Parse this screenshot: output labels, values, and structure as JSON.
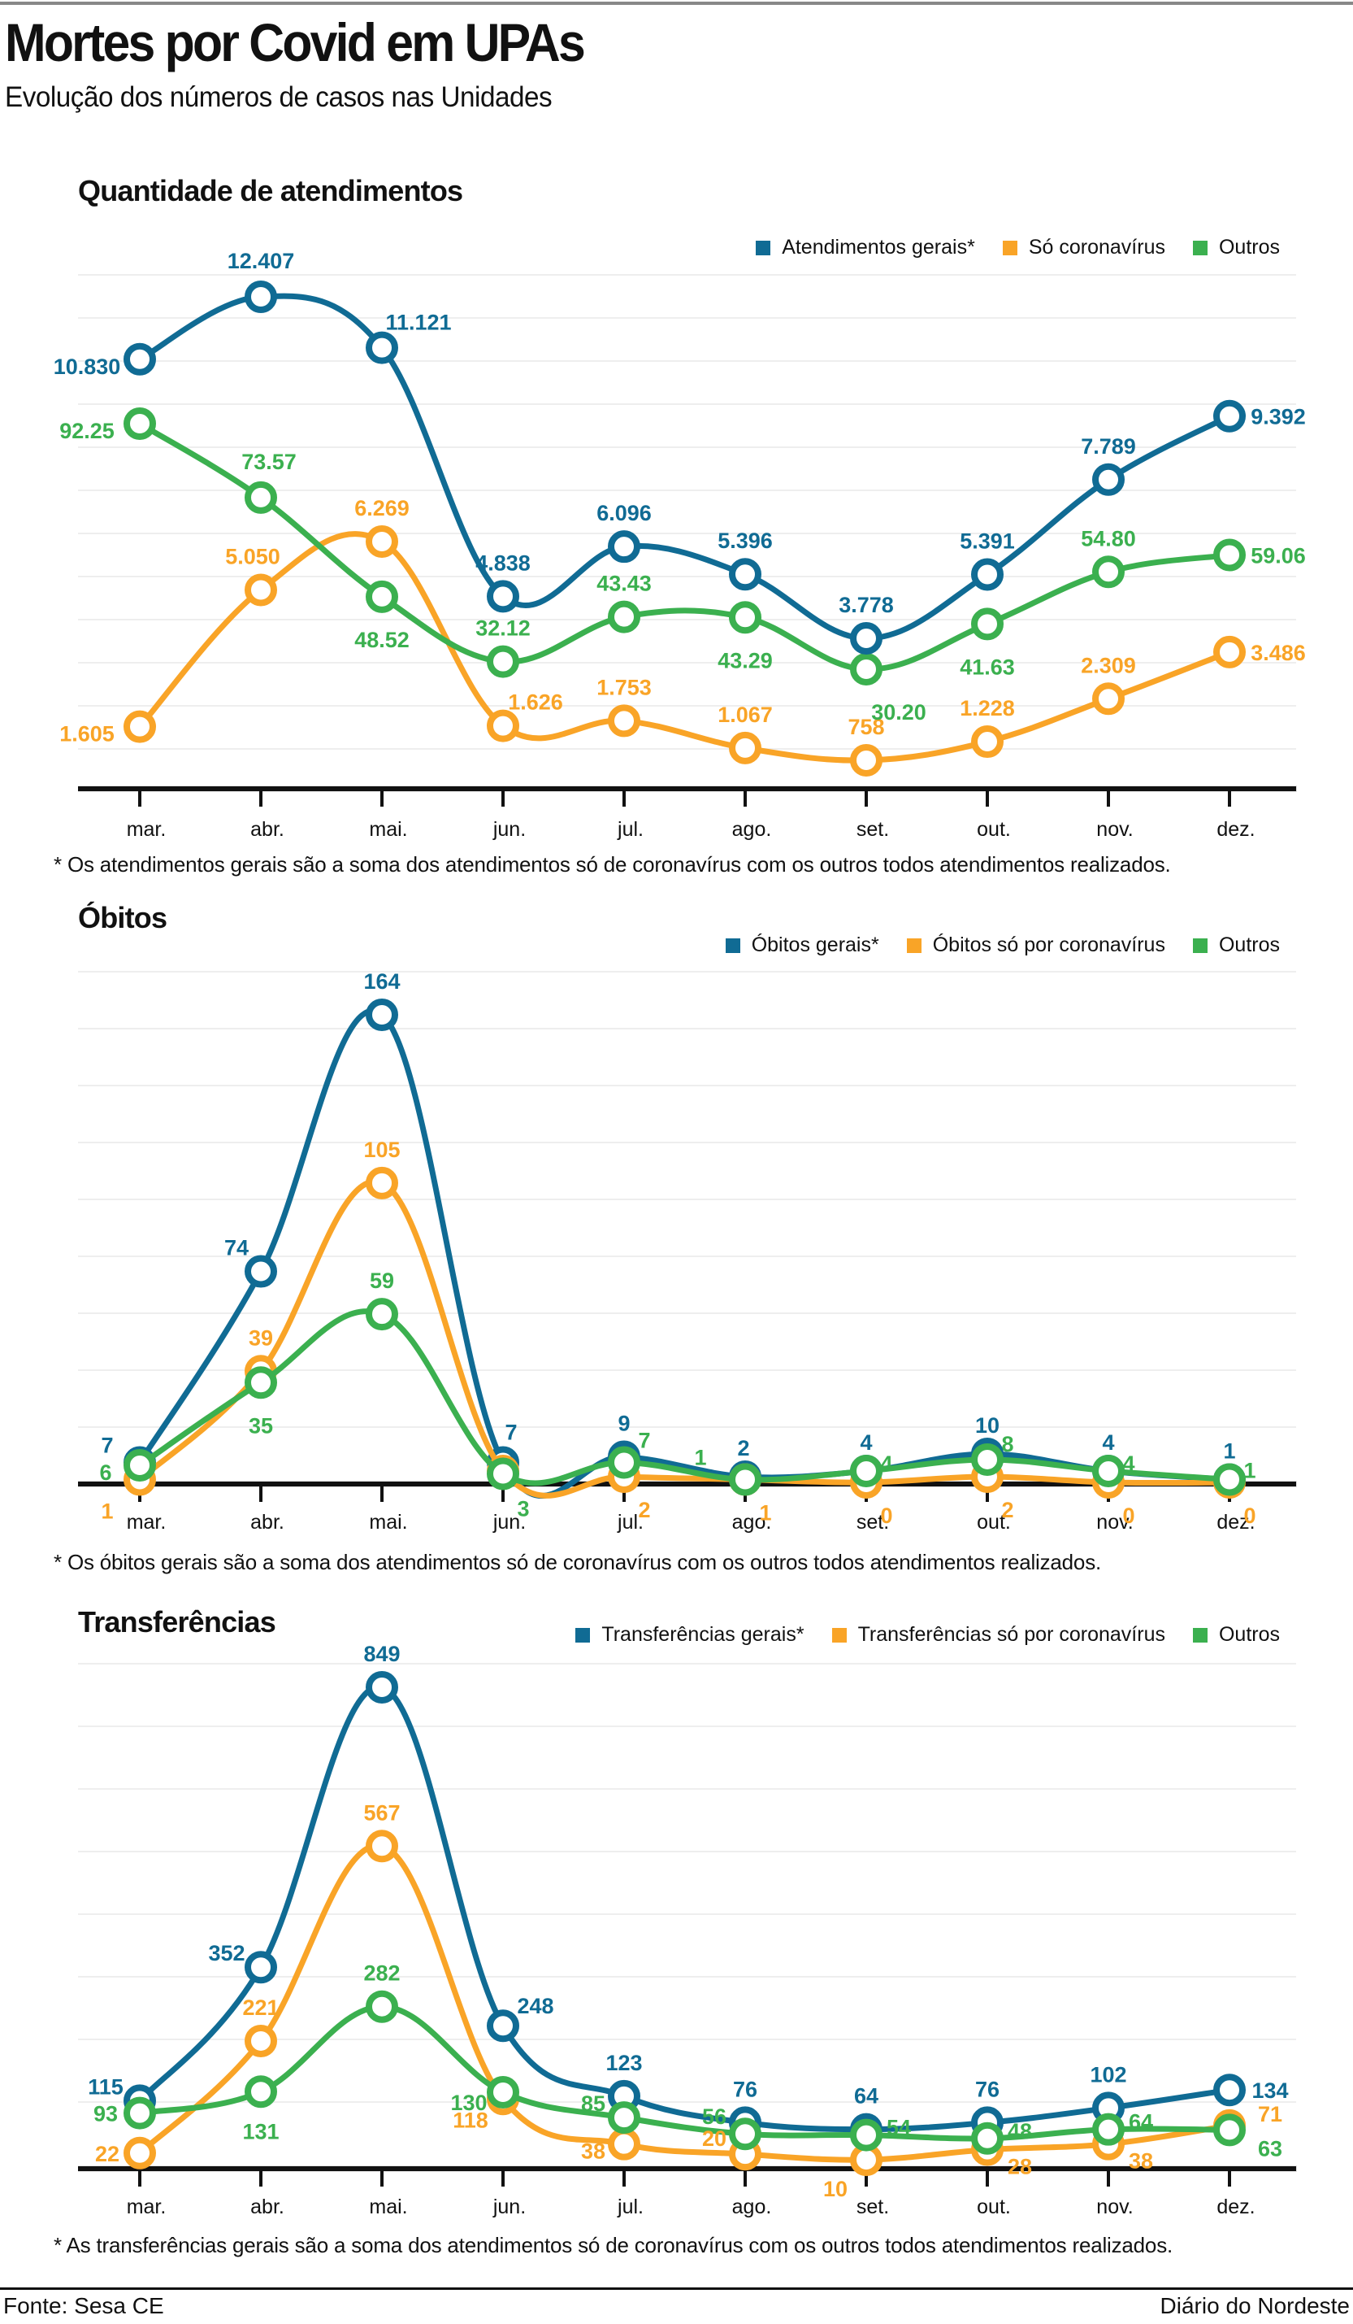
{
  "header": {
    "title": "Mortes por Covid em UPAs",
    "subtitle": "Evolução dos números de casos nas Unidades"
  },
  "colors": {
    "gerais": "#106b94",
    "coronavirus": "#f9a427",
    "outros": "#3bb04f",
    "grid": "#eeeeee",
    "axis": "#111111"
  },
  "chart_data": [
    {
      "id": "atendimentos",
      "type": "line",
      "title": "Quantidade de atendimentos",
      "categories": [
        "mar.",
        "abr.",
        "mai.",
        "jun.",
        "jul.",
        "ago.",
        "set.",
        "out.",
        "nov.",
        "dez."
      ],
      "series": [
        {
          "name": "Atendimentos gerais*",
          "key": "gerais",
          "values": [
            10830,
            12407,
            11121,
            4838,
            6096,
            5396,
            3778,
            5391,
            7789,
            9392
          ],
          "labels": [
            "10.830",
            "12.407",
            "11.121",
            "4.838",
            "6.096",
            "5.396",
            "3.778",
            "5.391",
            "7.789",
            "9.392"
          ]
        },
        {
          "name": "Só coronavírus",
          "key": "coronavirus",
          "values": [
            1605,
            5050,
            6269,
            1626,
            1753,
            1067,
            758,
            1228,
            2309,
            3486
          ],
          "labels": [
            "1.605",
            "5.050",
            "6.269",
            "1.626",
            "1.753",
            "1.067",
            "758",
            "1.228",
            "2.309",
            "3.486"
          ]
        },
        {
          "name": "Outros",
          "key": "outros",
          "values": [
            92.25,
            73.57,
            48.52,
            32.12,
            43.43,
            43.29,
            30.2,
            41.63,
            54.8,
            59.06
          ],
          "labels": [
            "92.25",
            "73.57",
            "48.52",
            "32.12",
            "43.43",
            "43.29",
            "30.20",
            "41.63",
            "54.80",
            "59.06"
          ]
        }
      ],
      "footnote": "* Os atendimentos gerais são a soma dos atendimentos só de coronavírus com os outros todos atendimentos realizados.",
      "grid": true,
      "legend": "top-right"
    },
    {
      "id": "obitos",
      "type": "line",
      "title": "Óbitos",
      "categories": [
        "mar.",
        "abr.",
        "mai.",
        "jun.",
        "jul.",
        "ago.",
        "set.",
        "out.",
        "nov.",
        "dez."
      ],
      "ylim": [
        0,
        170
      ],
      "series": [
        {
          "name": "Óbitos gerais*",
          "key": "gerais",
          "values": [
            7,
            74,
            164,
            7,
            9,
            2,
            4,
            10,
            4,
            1
          ],
          "labels": [
            "7",
            "74",
            "164",
            "7",
            "9",
            "2",
            "4",
            "10",
            "4",
            "1"
          ]
        },
        {
          "name": "Óbitos só por coronavírus",
          "key": "coronavirus",
          "values": [
            1,
            39,
            105,
            4,
            2,
            1,
            0,
            2,
            0,
            0
          ],
          "labels": [
            "1",
            "39",
            "105",
            "",
            "2",
            "1",
            "0",
            "2",
            "0",
            "0"
          ]
        },
        {
          "name": "Outros",
          "key": "outros",
          "values": [
            6,
            35,
            59,
            3,
            7,
            1,
            4,
            8,
            4,
            1
          ],
          "labels": [
            "6",
            "35",
            "59",
            "3",
            "7",
            "1",
            "4",
            "8",
            "4",
            "1"
          ]
        }
      ],
      "footnote": "* Os óbitos gerais são a soma dos atendimentos só de coronavírus com os outros todos atendimentos realizados.",
      "grid": true,
      "legend": "top-right"
    },
    {
      "id": "transferencias",
      "type": "line",
      "title": "Transferências",
      "categories": [
        "mar.",
        "abr.",
        "mai.",
        "jun.",
        "jul.",
        "ago.",
        "set.",
        "out.",
        "nov.",
        "dez."
      ],
      "ylim": [
        0,
        900
      ],
      "series": [
        {
          "name": "Transferências gerais*",
          "key": "gerais",
          "values": [
            115,
            352,
            849,
            248,
            123,
            76,
            64,
            76,
            102,
            134
          ],
          "labels": [
            "115",
            "352",
            "849",
            "248",
            "123",
            "76",
            "64",
            "76",
            "102",
            "134"
          ]
        },
        {
          "name": "Transferências só por coronavírus",
          "key": "coronavirus",
          "values": [
            22,
            221,
            567,
            118,
            38,
            20,
            10,
            28,
            38,
            71
          ],
          "labels": [
            "22",
            "221",
            "567",
            "118",
            "38",
            "20",
            "10",
            "28",
            "38",
            "71"
          ]
        },
        {
          "name": "Outros",
          "key": "outros",
          "values": [
            93,
            131,
            282,
            130,
            85,
            56,
            54,
            48,
            64,
            63
          ],
          "labels": [
            "93",
            "131",
            "282",
            "130",
            "85",
            "56",
            "54",
            "48",
            "64",
            "63"
          ]
        }
      ],
      "footnote": "* As transferências gerais são a soma dos atendimentos só de coronavírus com os outros todos atendimentos realizados.",
      "grid": true,
      "legend": "top-right"
    }
  ],
  "footer": {
    "source": "Fonte:  Sesa CE",
    "brand": "Diário do Nordeste"
  }
}
